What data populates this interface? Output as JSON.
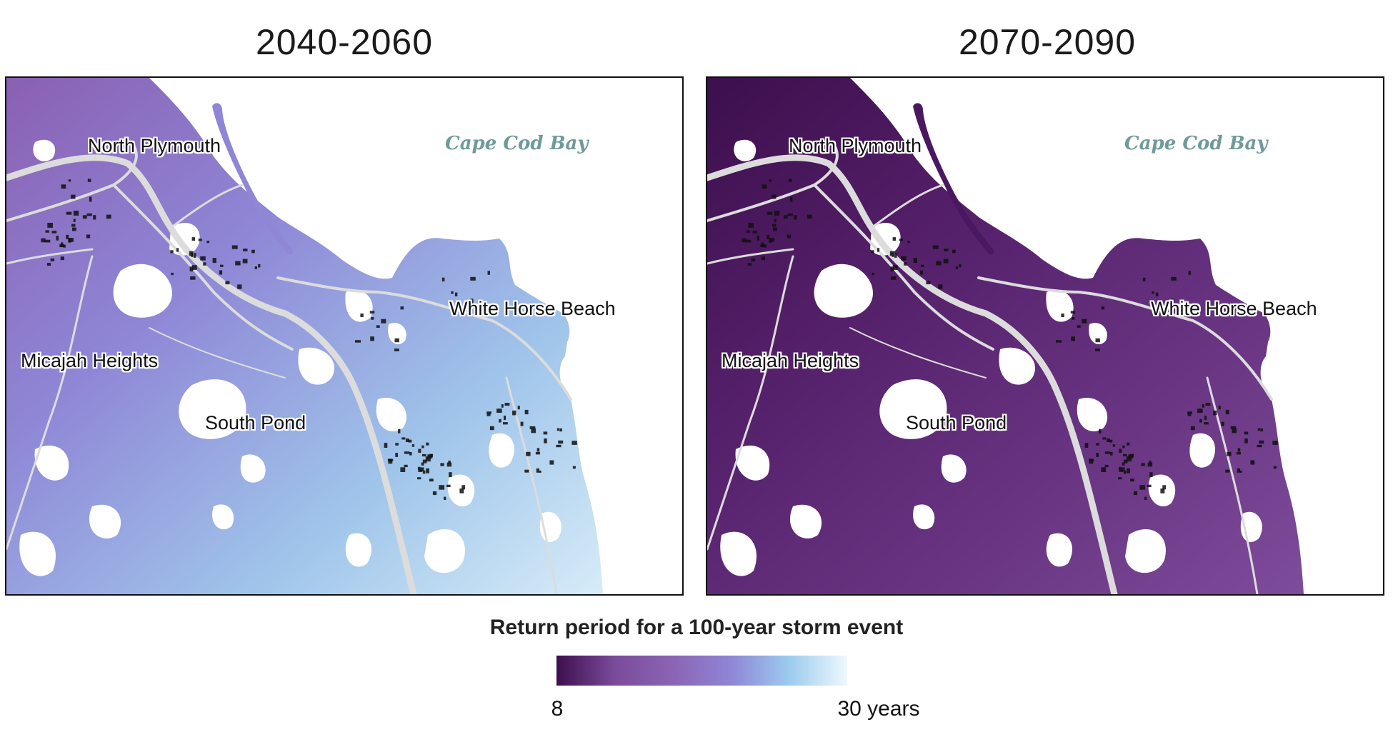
{
  "panels": [
    {
      "title": "2040-2060",
      "labels": {
        "north_plymouth": "North Plymouth",
        "cape_cod_bay": "Cape Cod Bay",
        "white_horse_beach": "White Horse Beach",
        "micajah_heights": "Micajah Heights",
        "south_pond": "South Pond"
      },
      "fill_colors": [
        "#8a60b3",
        "#8f86d6",
        "#9fc4ea",
        "#d6ecf8"
      ]
    },
    {
      "title": "2070-2090",
      "labels": {
        "north_plymouth": "North Plymouth",
        "cape_cod_bay": "Cape Cod Bay",
        "white_horse_beach": "White Horse Beach",
        "micajah_heights": "Micajah Heights",
        "south_pond": "South Pond"
      },
      "fill_colors": [
        "#3d0f4d",
        "#55206a",
        "#6a3684",
        "#7d4c9a"
      ]
    }
  ],
  "legend": {
    "title": "Return period for a 100-year storm event",
    "min_label": "8",
    "max_label": "30 years",
    "colors": [
      "#3d0f4d",
      "#7a4b9a",
      "#8b64b4",
      "#8f86d6",
      "#9ccbee",
      "#eef8fd"
    ]
  }
}
